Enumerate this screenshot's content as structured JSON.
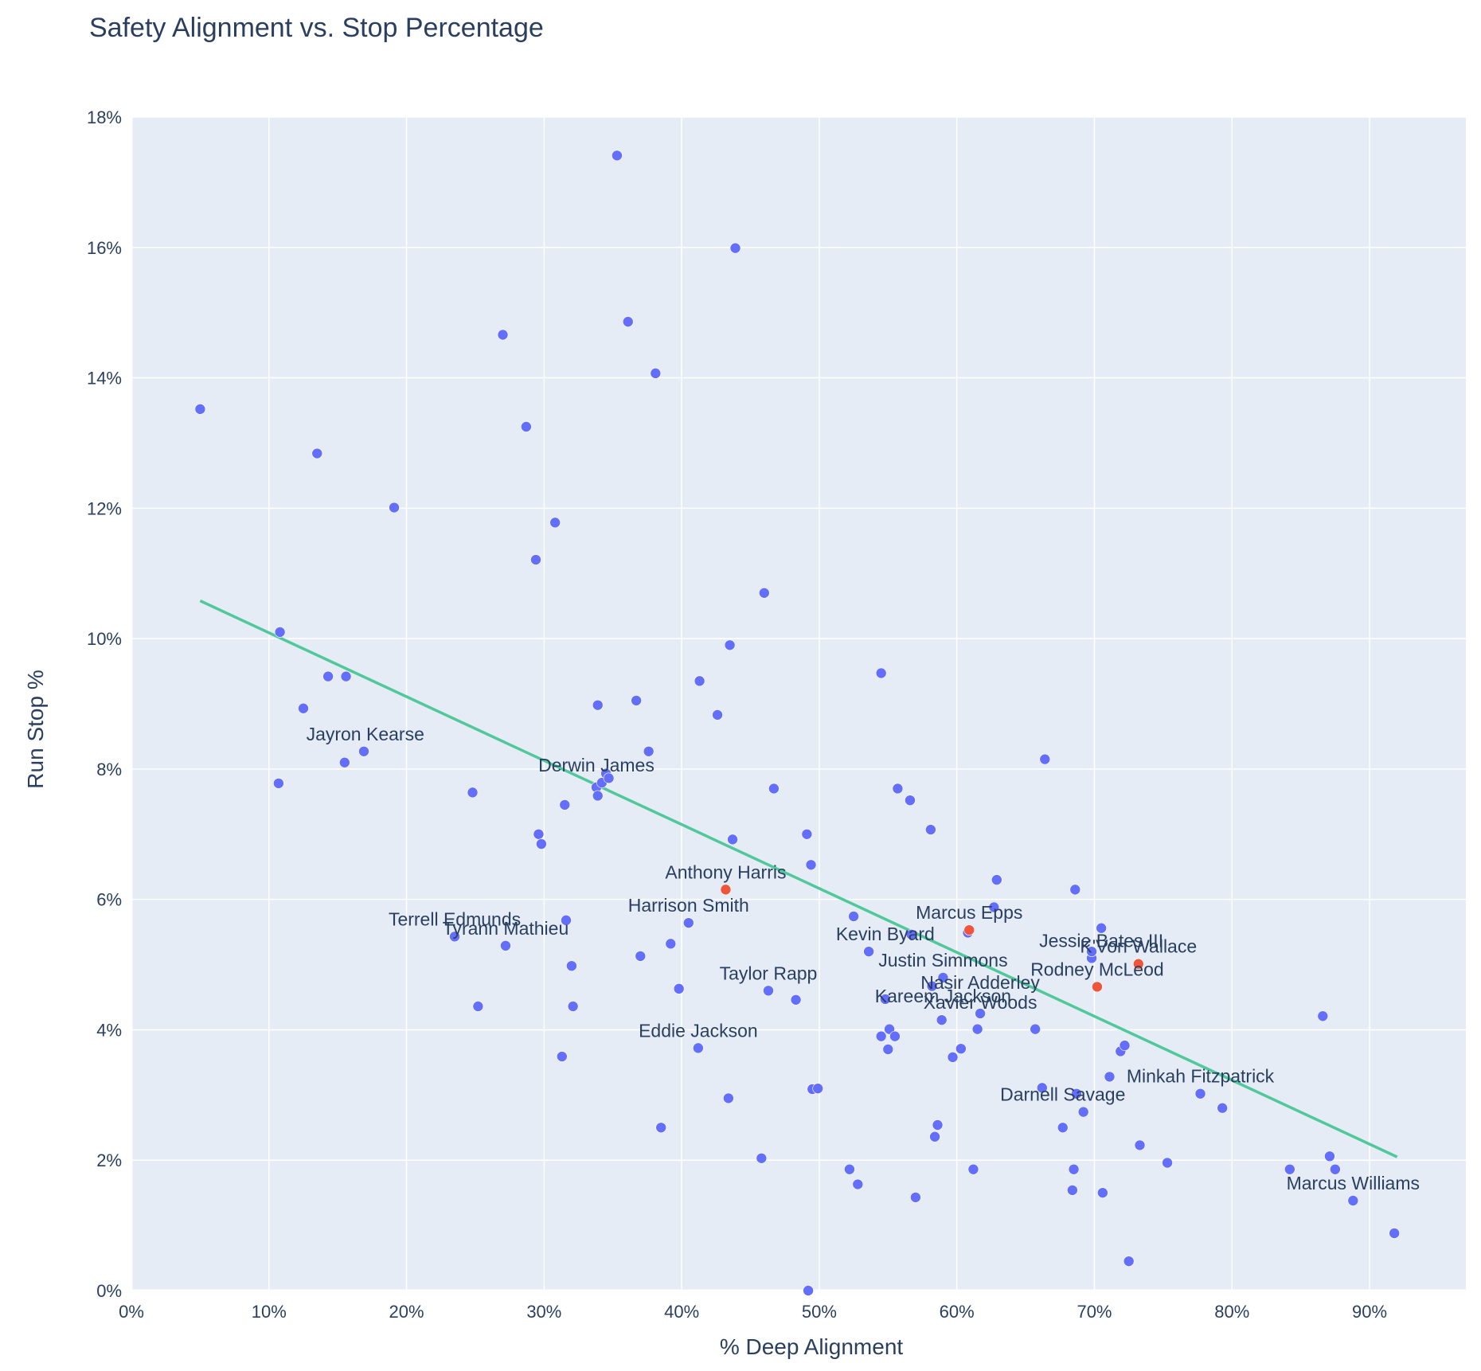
{
  "chart_data": {
    "type": "scatter",
    "title": "Safety Alignment vs. Stop Percentage",
    "xlabel": "% Deep Alignment",
    "ylabel": "Run Stop %",
    "xlim": [
      0,
      0.97
    ],
    "ylim": [
      0,
      0.18
    ],
    "x_ticks": [
      0,
      0.1,
      0.2,
      0.3,
      0.4,
      0.5,
      0.6,
      0.7,
      0.8,
      0.9
    ],
    "x_tick_labels": [
      "0%",
      "10%",
      "20%",
      "30%",
      "40%",
      "50%",
      "60%",
      "70%",
      "80%",
      "90%"
    ],
    "y_ticks": [
      0,
      0.02,
      0.04,
      0.06,
      0.08,
      0.1,
      0.12,
      0.14,
      0.16,
      0.18
    ],
    "y_tick_labels": [
      "0%",
      "2%",
      "4%",
      "6%",
      "8%",
      "10%",
      "12%",
      "14%",
      "16%",
      "18%"
    ],
    "grid": true,
    "legend": "none",
    "colors": {
      "plot_bg": "#e5ecf6",
      "grid": "#ffffff",
      "point": "#636efa",
      "highlight": "#ef553b",
      "trend": "#50c89a",
      "text": "#2a3f5f"
    },
    "trendline": {
      "x": [
        0.05,
        0.92
      ],
      "y": [
        0.1058,
        0.0205
      ]
    },
    "points": [
      {
        "x": 0.05,
        "y": 0.1352
      },
      {
        "x": 0.107,
        "y": 0.0778
      },
      {
        "x": 0.108,
        "y": 0.101
      },
      {
        "x": 0.125,
        "y": 0.0893
      },
      {
        "x": 0.135,
        "y": 0.1284
      },
      {
        "x": 0.143,
        "y": 0.0942
      },
      {
        "x": 0.155,
        "y": 0.081
      },
      {
        "x": 0.156,
        "y": 0.0942
      },
      {
        "x": 0.169,
        "y": 0.0827
      },
      {
        "x": 0.191,
        "y": 0.1201
      },
      {
        "x": 0.235,
        "y": 0.0543
      },
      {
        "x": 0.248,
        "y": 0.0764
      },
      {
        "x": 0.252,
        "y": 0.0436
      },
      {
        "x": 0.27,
        "y": 0.1466
      },
      {
        "x": 0.272,
        "y": 0.0529
      },
      {
        "x": 0.287,
        "y": 0.1325
      },
      {
        "x": 0.294,
        "y": 0.1121
      },
      {
        "x": 0.296,
        "y": 0.07
      },
      {
        "x": 0.298,
        "y": 0.0685
      },
      {
        "x": 0.308,
        "y": 0.1178
      },
      {
        "x": 0.313,
        "y": 0.0359
      },
      {
        "x": 0.315,
        "y": 0.0745
      },
      {
        "x": 0.316,
        "y": 0.0568
      },
      {
        "x": 0.32,
        "y": 0.0498
      },
      {
        "x": 0.321,
        "y": 0.0436
      },
      {
        "x": 0.338,
        "y": 0.0772
      },
      {
        "x": 0.339,
        "y": 0.0759
      },
      {
        "x": 0.339,
        "y": 0.0898
      },
      {
        "x": 0.342,
        "y": 0.0779
      },
      {
        "x": 0.345,
        "y": 0.0793
      },
      {
        "x": 0.347,
        "y": 0.0786
      },
      {
        "x": 0.353,
        "y": 0.1741
      },
      {
        "x": 0.361,
        "y": 0.1486
      },
      {
        "x": 0.367,
        "y": 0.0905
      },
      {
        "x": 0.37,
        "y": 0.0513
      },
      {
        "x": 0.376,
        "y": 0.0827
      },
      {
        "x": 0.381,
        "y": 0.1407
      },
      {
        "x": 0.385,
        "y": 0.025
      },
      {
        "x": 0.392,
        "y": 0.0532
      },
      {
        "x": 0.398,
        "y": 0.0463
      },
      {
        "x": 0.405,
        "y": 0.0564
      },
      {
        "x": 0.412,
        "y": 0.0372
      },
      {
        "x": 0.413,
        "y": 0.0935
      },
      {
        "x": 0.426,
        "y": 0.0883
      },
      {
        "x": 0.432,
        "y": 0.0615,
        "label": "Anthony Harris",
        "highlight": true
      },
      {
        "x": 0.434,
        "y": 0.0295
      },
      {
        "x": 0.435,
        "y": 0.099
      },
      {
        "x": 0.437,
        "y": 0.0692
      },
      {
        "x": 0.439,
        "y": 0.1599
      },
      {
        "x": 0.458,
        "y": 0.0203
      },
      {
        "x": 0.46,
        "y": 0.107
      },
      {
        "x": 0.463,
        "y": 0.046
      },
      {
        "x": 0.467,
        "y": 0.077
      },
      {
        "x": 0.483,
        "y": 0.0446
      },
      {
        "x": 0.491,
        "y": 0.07
      },
      {
        "x": 0.492,
        "y": 0.0
      },
      {
        "x": 0.494,
        "y": 0.0653
      },
      {
        "x": 0.495,
        "y": 0.0309
      },
      {
        "x": 0.499,
        "y": 0.031
      },
      {
        "x": 0.522,
        "y": 0.0186
      },
      {
        "x": 0.525,
        "y": 0.0574
      },
      {
        "x": 0.528,
        "y": 0.0163
      },
      {
        "x": 0.536,
        "y": 0.052
      },
      {
        "x": 0.545,
        "y": 0.039
      },
      {
        "x": 0.545,
        "y": 0.0947
      },
      {
        "x": 0.548,
        "y": 0.0447
      },
      {
        "x": 0.55,
        "y": 0.037
      },
      {
        "x": 0.551,
        "y": 0.0401
      },
      {
        "x": 0.555,
        "y": 0.039
      },
      {
        "x": 0.557,
        "y": 0.077
      },
      {
        "x": 0.566,
        "y": 0.0752
      },
      {
        "x": 0.567,
        "y": 0.0546
      },
      {
        "x": 0.57,
        "y": 0.0143
      },
      {
        "x": 0.581,
        "y": 0.0707
      },
      {
        "x": 0.582,
        "y": 0.0467
      },
      {
        "x": 0.584,
        "y": 0.0236
      },
      {
        "x": 0.586,
        "y": 0.0254
      },
      {
        "x": 0.589,
        "y": 0.0415
      },
      {
        "x": 0.59,
        "y": 0.048
      },
      {
        "x": 0.597,
        "y": 0.0358
      },
      {
        "x": 0.603,
        "y": 0.0371
      },
      {
        "x": 0.608,
        "y": 0.0549
      },
      {
        "x": 0.609,
        "y": 0.0553,
        "label": "Marcus Epps",
        "highlight": true
      },
      {
        "x": 0.612,
        "y": 0.0186
      },
      {
        "x": 0.615,
        "y": 0.0401
      },
      {
        "x": 0.617,
        "y": 0.0425
      },
      {
        "x": 0.627,
        "y": 0.0588
      },
      {
        "x": 0.629,
        "y": 0.063
      },
      {
        "x": 0.657,
        "y": 0.0401
      },
      {
        "x": 0.662,
        "y": 0.0311
      },
      {
        "x": 0.664,
        "y": 0.0815
      },
      {
        "x": 0.677,
        "y": 0.025
      },
      {
        "x": 0.684,
        "y": 0.0154
      },
      {
        "x": 0.685,
        "y": 0.0186
      },
      {
        "x": 0.686,
        "y": 0.0615
      },
      {
        "x": 0.687,
        "y": 0.0302
      },
      {
        "x": 0.692,
        "y": 0.0274
      },
      {
        "x": 0.698,
        "y": 0.051
      },
      {
        "x": 0.698,
        "y": 0.052
      },
      {
        "x": 0.702,
        "y": 0.0466,
        "highlight": true
      },
      {
        "x": 0.705,
        "y": 0.0556
      },
      {
        "x": 0.706,
        "y": 0.015
      },
      {
        "x": 0.711,
        "y": 0.0328
      },
      {
        "x": 0.719,
        "y": 0.0367
      },
      {
        "x": 0.722,
        "y": 0.0376
      },
      {
        "x": 0.725,
        "y": 0.0045
      },
      {
        "x": 0.732,
        "y": 0.0501,
        "highlight": true
      },
      {
        "x": 0.733,
        "y": 0.0223
      },
      {
        "x": 0.753,
        "y": 0.0196
      },
      {
        "x": 0.777,
        "y": 0.0302
      },
      {
        "x": 0.793,
        "y": 0.028
      },
      {
        "x": 0.842,
        "y": 0.0186
      },
      {
        "x": 0.866,
        "y": 0.0421
      },
      {
        "x": 0.871,
        "y": 0.0206
      },
      {
        "x": 0.875,
        "y": 0.0186
      },
      {
        "x": 0.888,
        "y": 0.0138
      },
      {
        "x": 0.918,
        "y": 0.0088
      }
    ],
    "labels": [
      {
        "text": "Jayron Kearse",
        "x": 0.17,
        "y": 0.0827
      },
      {
        "text": "Derwin James",
        "x": 0.338,
        "y": 0.0779
      },
      {
        "text": "Anthony Harris",
        "x": 0.432,
        "y": 0.0615
      },
      {
        "text": "Harrison Smith",
        "x": 0.405,
        "y": 0.0564
      },
      {
        "text": "Terrell Edmunds",
        "x": 0.235,
        "y": 0.0543
      },
      {
        "text": "Tyrann Mathieu",
        "x": 0.272,
        "y": 0.0529
      },
      {
        "text": "Marcus Epps",
        "x": 0.609,
        "y": 0.0553
      },
      {
        "text": "Kevin Byard",
        "x": 0.548,
        "y": 0.052
      },
      {
        "text": "Jessie Bates III",
        "x": 0.705,
        "y": 0.051
      },
      {
        "text": "K'Von Wallace",
        "x": 0.732,
        "y": 0.0501
      },
      {
        "text": "Justin Simmons",
        "x": 0.59,
        "y": 0.048
      },
      {
        "text": "Rodney McLeod",
        "x": 0.702,
        "y": 0.0466
      },
      {
        "text": "Taylor Rapp",
        "x": 0.463,
        "y": 0.046
      },
      {
        "text": "Nasir Adderley",
        "x": 0.617,
        "y": 0.0446
      },
      {
        "text": "Kareem Jackson",
        "x": 0.59,
        "y": 0.0425
      },
      {
        "text": "Xavier Woods",
        "x": 0.617,
        "y": 0.0415
      },
      {
        "text": "Eddie Jackson",
        "x": 0.412,
        "y": 0.0372
      },
      {
        "text": "Minkah Fitzpatrick",
        "x": 0.777,
        "y": 0.0302
      },
      {
        "text": "Darnell Savage",
        "x": 0.677,
        "y": 0.0274
      },
      {
        "text": "Marcus Williams",
        "x": 0.888,
        "y": 0.0138
      }
    ]
  }
}
